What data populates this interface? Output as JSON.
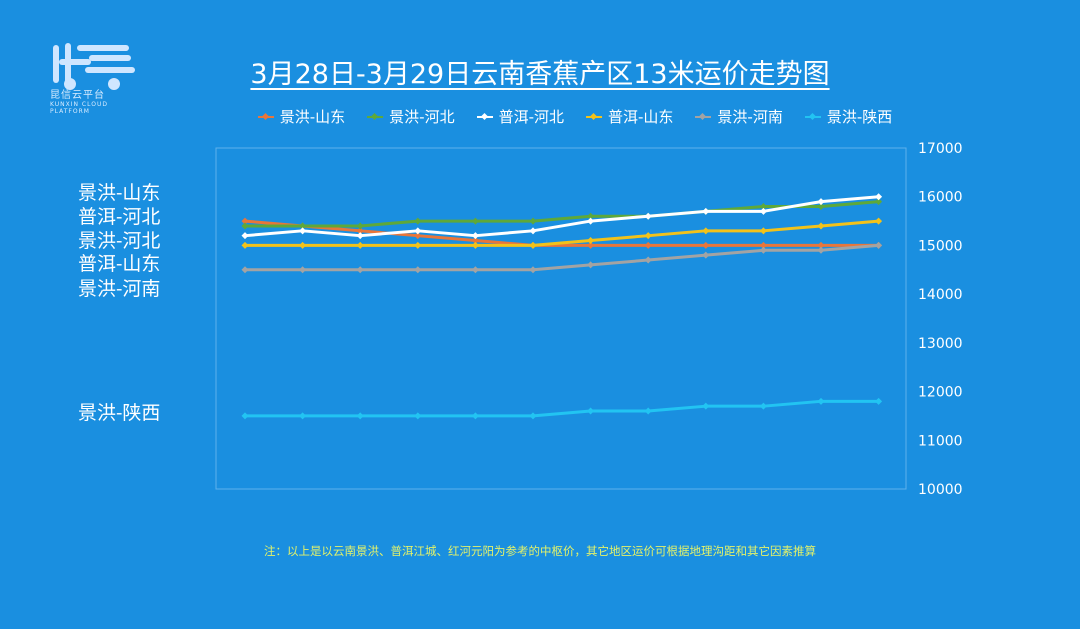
{
  "logo": {
    "text": "昆信云平台",
    "subtext": "KUNXIN CLOUD PLATFORM"
  },
  "chart_data": {
    "type": "line",
    "title": "3月28日-3月29日云南香蕉产区13米运价走势图",
    "xlabel": "",
    "ylabel": "",
    "x": [
      1,
      2,
      3,
      4,
      5,
      6,
      7,
      8,
      9,
      10,
      11,
      12
    ],
    "ylim": [
      10000,
      17000
    ],
    "yticks": [
      10000,
      11000,
      12000,
      13000,
      14000,
      15000,
      16000,
      17000
    ],
    "legend_position": "top",
    "grid": false,
    "series": [
      {
        "name": "景洪-山东",
        "color": "#e8763a",
        "values": [
          15500,
          15400,
          15300,
          15200,
          15100,
          15000,
          15000,
          15000,
          15000,
          15000,
          15000,
          15000
        ]
      },
      {
        "name": "景洪-河北",
        "color": "#5ea83a",
        "values": [
          15400,
          15400,
          15400,
          15500,
          15500,
          15500,
          15600,
          15600,
          15700,
          15800,
          15800,
          15900
        ]
      },
      {
        "name": "普洱-河北",
        "color": "#ffffff",
        "values": [
          15200,
          15300,
          15200,
          15300,
          15200,
          15300,
          15500,
          15600,
          15700,
          15700,
          15900,
          16000
        ]
      },
      {
        "name": "普洱-山东",
        "color": "#f2c21a",
        "values": [
          15000,
          15000,
          15000,
          15000,
          15000,
          15000,
          15100,
          15200,
          15300,
          15300,
          15400,
          15500
        ]
      },
      {
        "name": "景洪-河南",
        "color": "#a3a3a3",
        "values": [
          14500,
          14500,
          14500,
          14500,
          14500,
          14500,
          14600,
          14700,
          14800,
          14900,
          14900,
          15000
        ]
      },
      {
        "name": "景洪-陕西",
        "color": "#22c4f2",
        "values": [
          11500,
          11500,
          11500,
          11500,
          11500,
          11500,
          11600,
          11600,
          11700,
          11700,
          11800,
          11800
        ]
      }
    ]
  },
  "side_labels": [
    "景洪-山东",
    "普洱-河北",
    "景洪-河北",
    "普洱-山东",
    "景洪-河南",
    "景洪-陕西"
  ],
  "footnote": "注：以上是以云南景洪、普洱江城、红河元阳为参考的中枢价，其它地区运价可根据地理沟距和其它因素推算"
}
